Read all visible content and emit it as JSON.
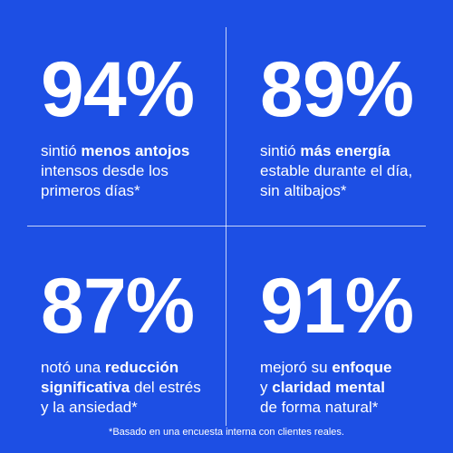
{
  "stats": [
    {
      "value": "94%",
      "lines": [
        [
          {
            "text": "sintió "
          },
          {
            "text": "menos antojos",
            "bold": true
          }
        ],
        [
          {
            "text": "intensos desde los"
          }
        ],
        [
          {
            "text": "primeros días*"
          }
        ]
      ]
    },
    {
      "value": "89%",
      "lines": [
        [
          {
            "text": "sintió "
          },
          {
            "text": "más energía",
            "bold": true
          }
        ],
        [
          {
            "text": "estable durante el día,"
          }
        ],
        [
          {
            "text": "sin altibajos*"
          }
        ]
      ]
    },
    {
      "value": "87%",
      "lines": [
        [
          {
            "text": "notó una "
          },
          {
            "text": "reducción",
            "bold": true
          }
        ],
        [
          {
            "text": "significativa",
            "bold": true
          },
          {
            "text": " del estrés"
          }
        ],
        [
          {
            "text": "y la ansiedad*"
          }
        ]
      ]
    },
    {
      "value": "91%",
      "lines": [
        [
          {
            "text": "mejoró su "
          },
          {
            "text": "enfoque",
            "bold": true
          }
        ],
        [
          {
            "text": "y "
          },
          {
            "text": "claridad mental",
            "bold": true
          }
        ],
        [
          {
            "text": "de forma natural*"
          }
        ]
      ]
    }
  ],
  "footnote": "*Basado en una encuesta interna con clientes reales."
}
